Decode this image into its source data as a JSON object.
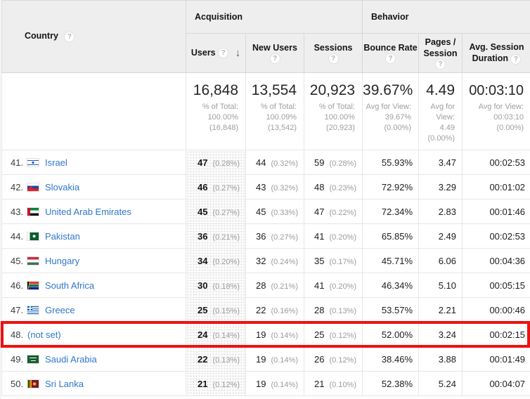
{
  "header": {
    "country": "Country",
    "acquisition": "Acquisition",
    "behavior": "Behavior",
    "users": "Users",
    "new_users": "New Users",
    "sessions": "Sessions",
    "bounce_rate": "Bounce Rate",
    "pages_session": "Pages / Session",
    "avg_session_duration": "Avg. Session Duration",
    "help": "?",
    "sort_arrow": "↓"
  },
  "summary": {
    "users": {
      "value": "16,848",
      "caption": [
        "% of Total:",
        "100.00%",
        "(16,848)"
      ]
    },
    "new_users": {
      "value": "13,554",
      "caption": [
        "% of Total:",
        "100.09%",
        "(13,542)"
      ]
    },
    "sessions": {
      "value": "20,923",
      "caption": [
        "% of Total:",
        "100.00%",
        "(20,923)"
      ]
    },
    "bounce_rate": {
      "value": "39.67%",
      "caption": [
        "Avg for View:",
        "39.67%",
        "(0.00%)"
      ]
    },
    "pages_session": {
      "value": "4.49",
      "caption": [
        "Avg for",
        "View:",
        "4.49",
        "(0.00%)"
      ]
    },
    "avg_session_duration": {
      "value": "00:03:10",
      "caption": [
        "Avg for View:",
        "00:03:10",
        "(0.00%)"
      ]
    }
  },
  "table": {
    "rows": [
      {
        "rank": "41.",
        "country": "Israel",
        "flag": "il",
        "users": "47",
        "users_pct": "(0.28%)",
        "new_users": "44",
        "new_users_pct": "(0.32%)",
        "sessions": "59",
        "sessions_pct": "(0.28%)",
        "bounce_rate": "55.93%",
        "pages_session": "3.47",
        "avg_session_duration": "00:02:53",
        "highlighted": false
      },
      {
        "rank": "42.",
        "country": "Slovakia",
        "flag": "sk",
        "users": "46",
        "users_pct": "(0.27%)",
        "new_users": "43",
        "new_users_pct": "(0.32%)",
        "sessions": "48",
        "sessions_pct": "(0.23%)",
        "bounce_rate": "72.92%",
        "pages_session": "3.29",
        "avg_session_duration": "00:01:02",
        "highlighted": false
      },
      {
        "rank": "43.",
        "country": "United Arab Emirates",
        "flag": "ae",
        "users": "45",
        "users_pct": "(0.27%)",
        "new_users": "45",
        "new_users_pct": "(0.33%)",
        "sessions": "47",
        "sessions_pct": "(0.22%)",
        "bounce_rate": "72.34%",
        "pages_session": "2.83",
        "avg_session_duration": "00:01:46",
        "highlighted": false
      },
      {
        "rank": "44.",
        "country": "Pakistan",
        "flag": "pk",
        "users": "36",
        "users_pct": "(0.21%)",
        "new_users": "36",
        "new_users_pct": "(0.27%)",
        "sessions": "41",
        "sessions_pct": "(0.20%)",
        "bounce_rate": "65.85%",
        "pages_session": "2.49",
        "avg_session_duration": "00:02:53",
        "highlighted": false
      },
      {
        "rank": "45.",
        "country": "Hungary",
        "flag": "hu",
        "users": "34",
        "users_pct": "(0.20%)",
        "new_users": "32",
        "new_users_pct": "(0.24%)",
        "sessions": "35",
        "sessions_pct": "(0.17%)",
        "bounce_rate": "45.71%",
        "pages_session": "6.06",
        "avg_session_duration": "00:04:36",
        "highlighted": false
      },
      {
        "rank": "46.",
        "country": "South Africa",
        "flag": "za",
        "users": "30",
        "users_pct": "(0.18%)",
        "new_users": "28",
        "new_users_pct": "(0.21%)",
        "sessions": "41",
        "sessions_pct": "(0.20%)",
        "bounce_rate": "46.34%",
        "pages_session": "5.10",
        "avg_session_duration": "00:05:15",
        "highlighted": false
      },
      {
        "rank": "47.",
        "country": "Greece",
        "flag": "gr",
        "users": "25",
        "users_pct": "(0.15%)",
        "new_users": "22",
        "new_users_pct": "(0.16%)",
        "sessions": "28",
        "sessions_pct": "(0.13%)",
        "bounce_rate": "53.57%",
        "pages_session": "2.21",
        "avg_session_duration": "00:00:46",
        "highlighted": false
      },
      {
        "rank": "48.",
        "country": "(not set)",
        "flag": "",
        "users": "24",
        "users_pct": "(0.14%)",
        "new_users": "19",
        "new_users_pct": "(0.14%)",
        "sessions": "25",
        "sessions_pct": "(0.12%)",
        "bounce_rate": "52.00%",
        "pages_session": "3.24",
        "avg_session_duration": "00:02:15",
        "highlighted": true
      },
      {
        "rank": "49.",
        "country": "Saudi Arabia",
        "flag": "sa",
        "users": "22",
        "users_pct": "(0.13%)",
        "new_users": "19",
        "new_users_pct": "(0.14%)",
        "sessions": "26",
        "sessions_pct": "(0.12%)",
        "bounce_rate": "38.46%",
        "pages_session": "3.88",
        "avg_session_duration": "00:01:49",
        "highlighted": false
      },
      {
        "rank": "50.",
        "country": "Sri Lanka",
        "flag": "lk",
        "users": "21",
        "users_pct": "(0.12%)",
        "new_users": "19",
        "new_users_pct": "(0.14%)",
        "sessions": "21",
        "sessions_pct": "(0.10%)",
        "bounce_rate": "52.38%",
        "pages_session": "5.24",
        "avg_session_duration": "00:04:07",
        "highlighted": false
      }
    ]
  },
  "colors": {
    "highlight_red": "#ee1111",
    "link_blue": "#2f78c8"
  }
}
